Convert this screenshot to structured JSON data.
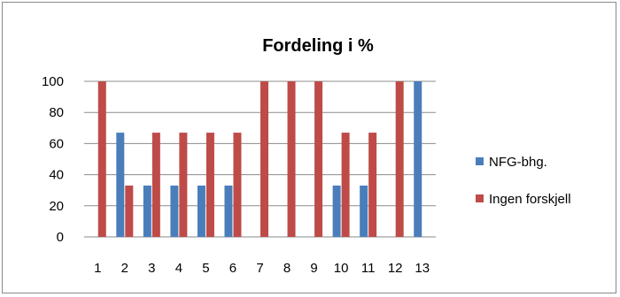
{
  "chart_data": {
    "type": "bar",
    "title": "Fordeling i %",
    "xlabel": "",
    "ylabel": "",
    "ylim": [
      0,
      100
    ],
    "yticks": [
      0,
      20,
      40,
      60,
      80,
      100
    ],
    "grid": true,
    "legend_position": "right",
    "categories": [
      "1",
      "2",
      "3",
      "4",
      "5",
      "6",
      "7",
      "8",
      "9",
      "10",
      "11",
      "12",
      "13"
    ],
    "series": [
      {
        "name": "NFG-bhg.",
        "color": "#4a7ebb",
        "values": [
          0,
          67,
          33,
          33,
          33,
          33,
          0,
          0,
          0,
          33,
          33,
          0,
          100
        ]
      },
      {
        "name": "Ingen forskjell",
        "color": "#be4b48",
        "values": [
          100,
          33,
          67,
          67,
          67,
          67,
          100,
          100,
          100,
          67,
          67,
          100,
          0
        ]
      }
    ]
  }
}
